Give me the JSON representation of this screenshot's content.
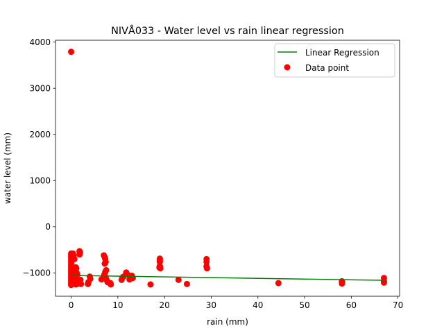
{
  "chart_data": {
    "type": "scatter",
    "title": "NIVÅ033 - Water level vs rain linear regression",
    "xlabel": "rain (mm)",
    "ylabel": "water level (mm)",
    "xlim": [
      -3.35,
      70.35
    ],
    "ylim": [
      -1505,
      4040
    ],
    "xticks": [
      0,
      10,
      20,
      30,
      40,
      50,
      60,
      70
    ],
    "yticks": [
      -1000,
      0,
      1000,
      2000,
      3000,
      4000
    ],
    "grid": false,
    "legend_position": "upper right",
    "series": [
      {
        "name": "Linear Regression",
        "kind": "line",
        "color": "#008000",
        "x": [
          0,
          67
        ],
        "y": [
          -1055,
          -1160
        ]
      },
      {
        "name": "Data point",
        "kind": "scatter",
        "color": "#ff0000",
        "x": [
          0,
          0,
          0,
          0,
          0,
          0,
          0,
          0,
          0,
          0,
          0,
          0,
          0,
          0,
          0,
          0,
          0,
          0,
          0,
          0,
          0.2,
          0.3,
          0.4,
          0.5,
          0.6,
          0.7,
          0.8,
          0.9,
          1.0,
          1.1,
          1.2,
          1.3,
          0.5,
          0.8,
          1.0,
          1.2,
          0.6,
          0.9,
          1.1,
          0.4,
          0.7,
          1.3,
          1.5,
          1.0,
          1.8,
          1.9,
          1.8,
          2.0,
          1.7,
          2.1,
          3.6,
          3.7,
          4.0,
          4.1,
          6.5,
          7.0,
          7.2,
          7.3,
          7.4,
          7.2,
          7.5,
          7.3,
          7.1,
          7.6,
          7.8,
          7.4,
          8.4,
          8.5,
          10.8,
          11.0,
          11.2,
          11.8,
          12.0,
          13.0,
          13.2,
          12.5,
          17.0,
          19.0,
          19.0,
          19.0,
          19.0,
          19.1,
          18.9,
          23.0,
          24.8,
          29.0,
          29.0,
          29.0,
          29.1,
          44.4,
          58.0,
          58.0,
          58.0,
          67.0,
          67.0,
          67.0
        ],
        "y": [
          3790,
          -580,
          -620,
          -660,
          -700,
          -740,
          -780,
          -820,
          -860,
          -900,
          -940,
          -980,
          -1020,
          -1060,
          -1100,
          -1140,
          -1180,
          -1210,
          -1240,
          -1260,
          -1230,
          -1200,
          -580,
          -620,
          -1150,
          -1100,
          -1240,
          -1180,
          -880,
          -900,
          -1000,
          -1040,
          -1120,
          -1220,
          -1250,
          -1160,
          -960,
          -1080,
          -1190,
          -650,
          -700,
          -1240,
          -1210,
          -1130,
          -530,
          -560,
          -600,
          -1150,
          -1200,
          -1240,
          -1240,
          -1200,
          -1080,
          -1130,
          -1140,
          -620,
          -660,
          -700,
          -760,
          -800,
          -940,
          -980,
          -1040,
          -1150,
          -1200,
          -1100,
          -1220,
          -1250,
          -1150,
          -1100,
          -1080,
          -990,
          -1030,
          -1060,
          -1110,
          -1140,
          -1250,
          -690,
          -730,
          -760,
          -850,
          -900,
          -880,
          -1150,
          -1240,
          -700,
          -760,
          -860,
          -900,
          -1220,
          -1180,
          -1200,
          -1230,
          -1110,
          -1180,
          -1210
        ]
      }
    ]
  }
}
